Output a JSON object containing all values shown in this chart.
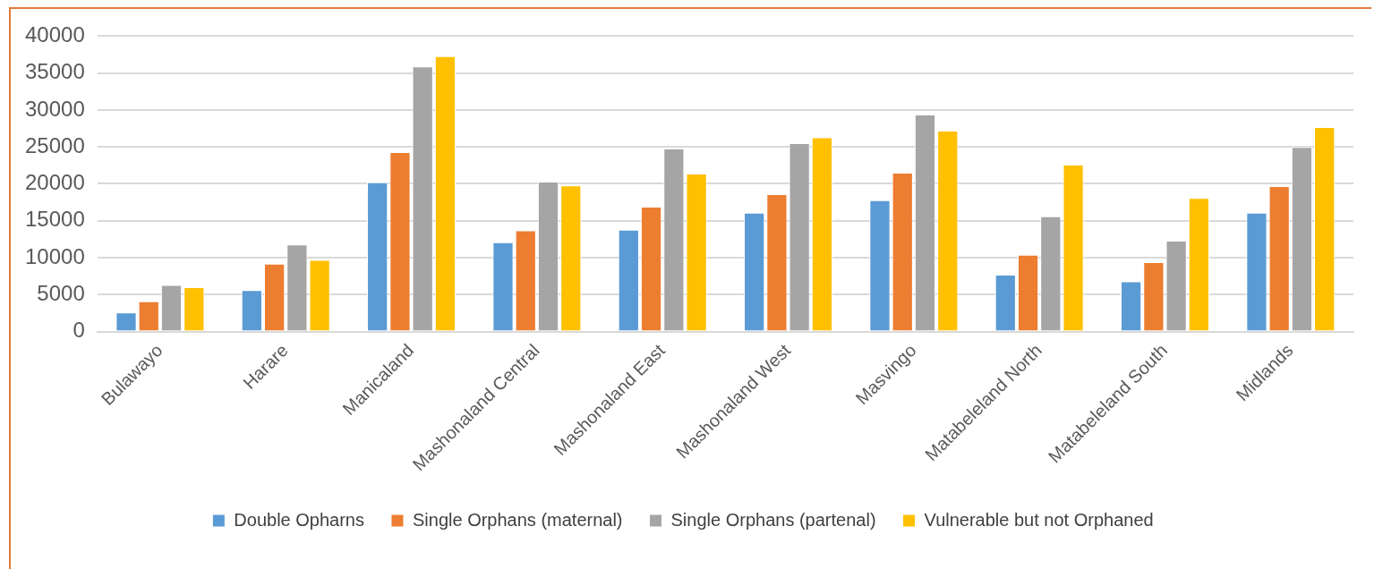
{
  "chart_data": {
    "type": "bar",
    "categories": [
      "Bulawayo",
      "Harare",
      "Manicaland",
      "Mashonaland Central",
      "Mashonaland East",
      "Mashonaland West",
      "Masvingo",
      "Matabeleland North",
      "Matabeleland South",
      "Midlands"
    ],
    "series": [
      {
        "name": "Double Opharns",
        "color": "#5b9bd5",
        "values": [
          2600,
          5600,
          20200,
          12100,
          13800,
          16100,
          17800,
          7700,
          6800,
          16100
        ]
      },
      {
        "name": "Single Orphans (maternal)",
        "color": "#ed7d31",
        "values": [
          4100,
          9200,
          24300,
          13700,
          16900,
          18600,
          21500,
          10400,
          9400,
          19700
        ]
      },
      {
        "name": "Single Orphans (partenal)",
        "color": "#a5a5a5",
        "values": [
          6300,
          11800,
          35900,
          20300,
          24800,
          25500,
          29400,
          15600,
          12300,
          25000
        ]
      },
      {
        "name": "Vulnerable but not Orphaned",
        "color": "#ffc000",
        "values": [
          6000,
          9700,
          37300,
          19800,
          21400,
          26300,
          27200,
          22600,
          18100,
          27700
        ]
      }
    ],
    "ylim": [
      0,
      40000
    ],
    "yticks": [
      0,
      5000,
      10000,
      15000,
      20000,
      25000,
      30000,
      35000,
      40000
    ],
    "grid": "y",
    "legend": "bottom"
  }
}
